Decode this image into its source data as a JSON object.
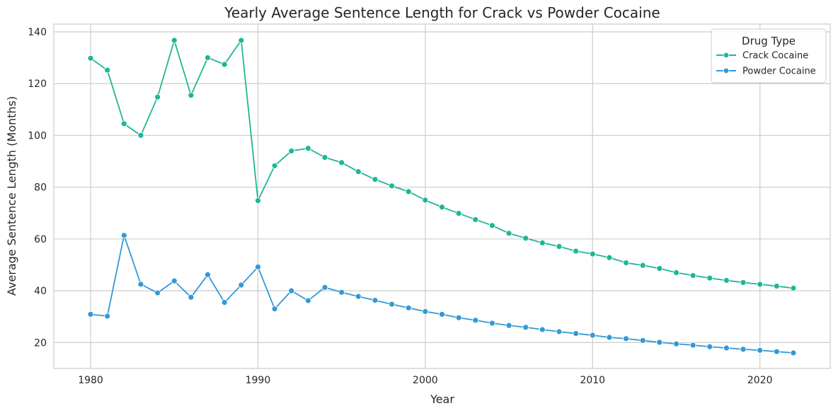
{
  "chart_data": {
    "type": "line",
    "title": "Yearly Average Sentence Length for Crack vs Powder Cocaine",
    "xlabel": "Year",
    "ylabel": "Average Sentence Length (Months)",
    "xlim": [
      1977.8,
      2024.2
    ],
    "ylim": [
      10,
      143
    ],
    "xticks": [
      1980,
      1990,
      2000,
      2010,
      2020
    ],
    "yticks": [
      20,
      40,
      60,
      80,
      100,
      120,
      140
    ],
    "grid": true,
    "legend": {
      "title": "Drug Type",
      "position": "top-right"
    },
    "x": [
      1980,
      1981,
      1982,
      1983,
      1984,
      1985,
      1986,
      1987,
      1988,
      1989,
      1990,
      1991,
      1992,
      1993,
      1994,
      1995,
      1996,
      1997,
      1998,
      1999,
      2000,
      2001,
      2002,
      2003,
      2004,
      2005,
      2006,
      2007,
      2008,
      2009,
      2010,
      2011,
      2012,
      2013,
      2014,
      2015,
      2016,
      2017,
      2018,
      2019,
      2020,
      2021,
      2022
    ],
    "series": [
      {
        "name": "Crack Cocaine",
        "color": "#1fb696",
        "values": [
          129.8,
          125.2,
          104.5,
          100.0,
          114.8,
          136.7,
          115.5,
          130.0,
          127.4,
          136.7,
          74.8,
          88.3,
          94.0,
          95.0,
          91.5,
          89.5,
          86.0,
          83.0,
          80.5,
          78.3,
          75.0,
          72.3,
          69.9,
          67.5,
          65.2,
          62.2,
          60.3,
          58.5,
          57.1,
          55.3,
          54.2,
          52.8,
          50.8,
          49.8,
          48.6,
          47.0,
          45.9,
          44.9,
          44.0,
          43.2,
          42.5,
          41.8,
          41.0
        ]
      },
      {
        "name": "Powder Cocaine",
        "color": "#3498d6",
        "values": [
          30.9,
          30.2,
          61.4,
          42.5,
          39.2,
          43.8,
          37.5,
          46.2,
          35.5,
          42.2,
          49.2,
          33.0,
          40.0,
          36.2,
          41.3,
          39.4,
          37.8,
          36.3,
          34.8,
          33.4,
          32.0,
          30.9,
          29.6,
          28.6,
          27.5,
          26.6,
          25.9,
          25.0,
          24.2,
          23.5,
          22.8,
          22.0,
          21.5,
          20.8,
          20.1,
          19.5,
          19.0,
          18.4,
          17.9,
          17.4,
          17.0,
          16.5,
          16.0
        ]
      }
    ]
  }
}
